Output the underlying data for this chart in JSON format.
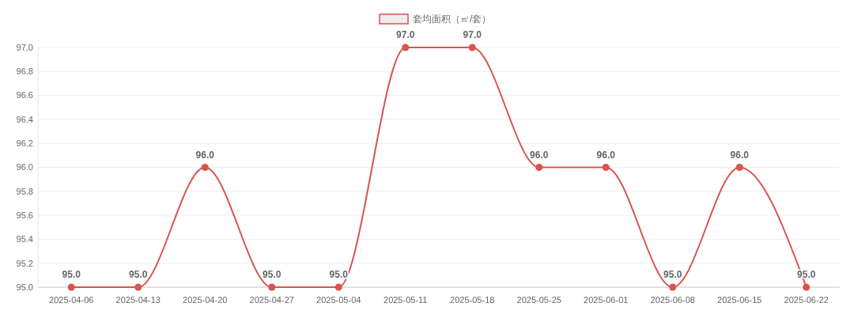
{
  "chart_data": {
    "type": "line",
    "categories": [
      "2025-04-06",
      "2025-04-13",
      "2025-04-20",
      "2025-04-27",
      "2025-05-04",
      "2025-05-11",
      "2025-05-18",
      "2025-05-25",
      "2025-06-01",
      "2025-06-08",
      "2025-06-15",
      "2025-06-22"
    ],
    "series": [
      {
        "name": "套均面积（㎡/套）",
        "color": "#d9534f",
        "values": [
          95,
          95,
          96,
          95,
          95,
          97,
          97,
          96,
          96,
          95,
          96,
          95
        ],
        "value_labels": [
          "95.0",
          "95.0",
          "96.0",
          "95.0",
          "95.0",
          "97.0",
          "97.0",
          "96.0",
          "96.0",
          "95.0",
          "96.0",
          "95.0"
        ]
      }
    ],
    "ylim": [
      95,
      97
    ],
    "yticks": [
      {
        "value": 95,
        "label": "95.0"
      },
      {
        "value": 95.2,
        "label": "95.2"
      },
      {
        "value": 95.4,
        "label": "95.4"
      },
      {
        "value": 95.6,
        "label": "95.6"
      },
      {
        "value": 95.8,
        "label": "95.8"
      },
      {
        "value": 96,
        "label": "96.0"
      },
      {
        "value": 96.2,
        "label": "96.2"
      },
      {
        "value": 96.4,
        "label": "96.4"
      },
      {
        "value": 96.6,
        "label": "96.6"
      },
      {
        "value": 96.8,
        "label": "96.8"
      },
      {
        "value": 97,
        "label": "97.0"
      }
    ],
    "grid": "y",
    "legend": "top",
    "marker": "circle",
    "line_style": "solid"
  }
}
